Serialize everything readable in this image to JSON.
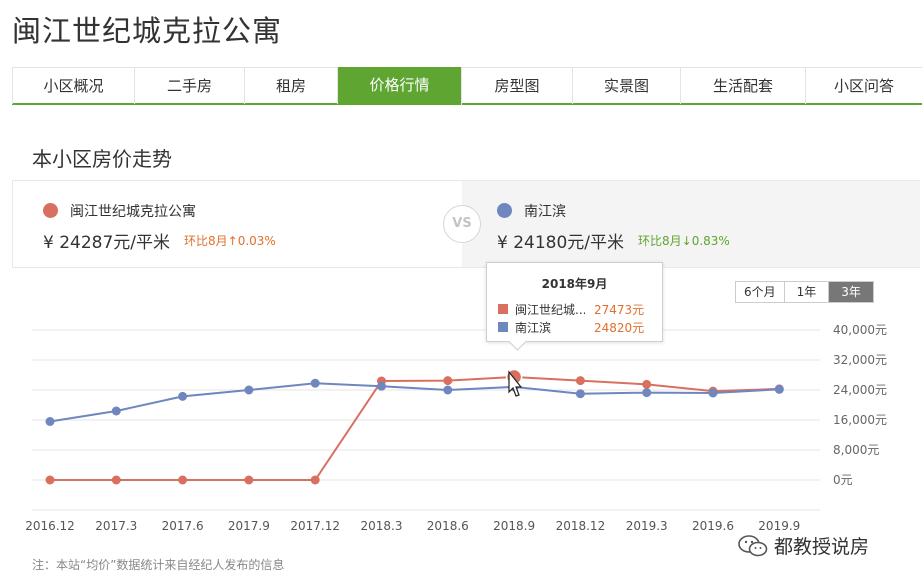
{
  "page": {
    "title": "闽江世纪城克拉公寓"
  },
  "tabs": [
    {
      "label": "小区概况",
      "active": false
    },
    {
      "label": "二手房",
      "active": false
    },
    {
      "label": "租房",
      "active": false
    },
    {
      "label": "价格行情",
      "active": true
    },
    {
      "label": "房型图",
      "active": false
    },
    {
      "label": "实景图",
      "active": false
    },
    {
      "label": "生活配套",
      "active": false
    },
    {
      "label": "小区问答",
      "active": false
    }
  ],
  "section": {
    "title": "本小区房价走势"
  },
  "compare": {
    "left": {
      "name": "闽江世纪城克拉公寓",
      "price": "¥ 24287元/平米",
      "change": "环比8月↑0.03%",
      "color": "#d9705f",
      "change_color": "#e0702d"
    },
    "vs": "VS",
    "right": {
      "name": "南江滨",
      "price": "¥ 24180元/平米",
      "change": "环比8月↓0.83%",
      "color": "#6f86bf",
      "change_color": "#5fa531"
    }
  },
  "range": {
    "options": [
      "6个月",
      "1年",
      "3年"
    ],
    "selected": "3年"
  },
  "tooltip": {
    "title": "2018年9月",
    "rows": [
      {
        "name": "闽江世纪城...",
        "value": "27473元",
        "color": "#d9705f"
      },
      {
        "name": "南江滨",
        "value": "24820元",
        "color": "#6f86bf"
      }
    ]
  },
  "chart_data": {
    "type": "line",
    "x": [
      "2016.12",
      "2017.3",
      "2017.6",
      "2017.9",
      "2017.12",
      "2018.3",
      "2018.6",
      "2018.9",
      "2018.12",
      "2019.3",
      "2019.6",
      "2019.9"
    ],
    "series": [
      {
        "name": "闽江世纪城克拉公寓",
        "color": "#d9705f",
        "values": [
          null,
          null,
          null,
          null,
          null,
          26400,
          26500,
          27473,
          26500,
          25500,
          23700,
          24287
        ],
        "zero_points": [
          0,
          0,
          0,
          0,
          0
        ]
      },
      {
        "name": "南江滨",
        "color": "#6f86bf",
        "values": [
          15600,
          18400,
          22300,
          24000,
          25800,
          25000,
          24000,
          24820,
          23000,
          23300,
          23200,
          24180
        ]
      }
    ],
    "yticks": [
      "40,000元",
      "32,000元",
      "24,000元",
      "16,000元",
      "8,000元",
      "0元"
    ],
    "ylim": [
      0,
      40000
    ],
    "grid": true,
    "highlight_index": 7
  },
  "footer": {
    "note": "注：本站“均价”数据统计来自经纪人发布的信息",
    "watermark": "都教授说房"
  }
}
